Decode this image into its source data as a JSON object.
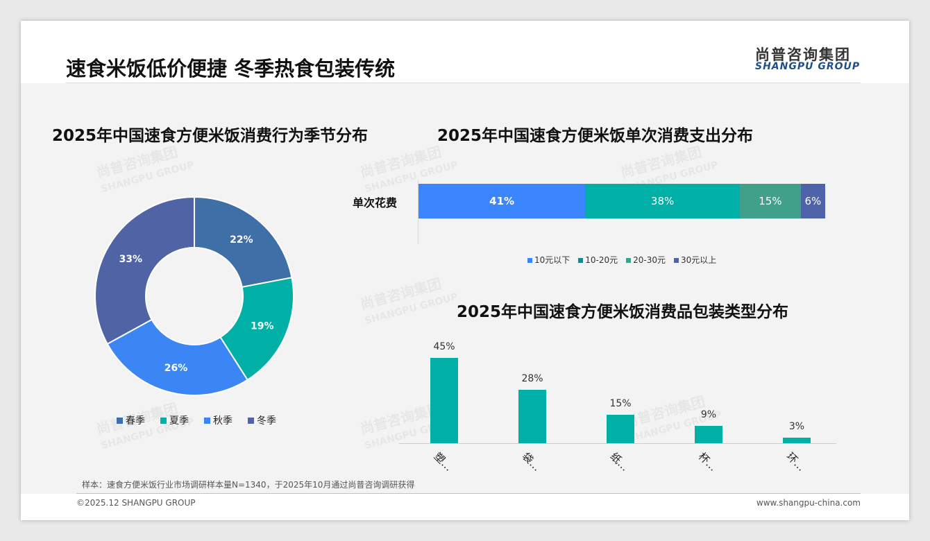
{
  "header": {
    "title": "速食米饭低价便捷 冬季热食包装传统",
    "logo_cn": "尚普咨询集团",
    "logo_en": "SHANGPU GROUP"
  },
  "watermark": {
    "cn": "尚普咨询集团",
    "en": "SHANGPU GROUP"
  },
  "chart_data": [
    {
      "type": "pie",
      "title": "2025年中国速食方便米饭消费行为季节分布",
      "categories": [
        "春季",
        "夏季",
        "秋季",
        "冬季"
      ],
      "values": [
        22,
        19,
        26,
        33
      ],
      "labels": [
        "22%",
        "19%",
        "26%",
        "33%"
      ],
      "colors": [
        "#3e6fa6",
        "#00b0a6",
        "#3b86f4",
        "#4f63a5"
      ],
      "donut": true,
      "legend": "bottom"
    },
    {
      "type": "bar",
      "orientation": "horizontal",
      "stacked": true,
      "title": "2025年中国速食方便米饭单次消费支出分布",
      "categories": [
        "单次花费"
      ],
      "series": [
        {
          "name": "10元以下",
          "values": [
            41
          ],
          "label": "41%",
          "color": "#3b86ff"
        },
        {
          "name": "10-20元",
          "values": [
            38
          ],
          "label": "38%",
          "color": "#00b0a6"
        },
        {
          "name": "20-30元",
          "values": [
            15
          ],
          "label": "15%",
          "color": "#40a08a"
        },
        {
          "name": "30元以上",
          "values": [
            6
          ],
          "label": "6%",
          "color": "#4f63a8"
        }
      ],
      "legend": "bottom",
      "legend_colors": [
        "#3b86ff",
        "#0e8f8f",
        "#40a08a",
        "#4f63a8"
      ]
    },
    {
      "type": "bar",
      "title": "2025年中国速食方便米饭消费品包装类型分布",
      "categories": [
        "塑…",
        "袋…",
        "纸…",
        "杯…",
        "环…"
      ],
      "values": [
        45,
        28,
        15,
        9,
        3
      ],
      "labels": [
        "45%",
        "28%",
        "15%",
        "9%",
        "3%"
      ],
      "color": "#00b0a6",
      "ylim": [
        0,
        45
      ]
    }
  ],
  "footer": {
    "note": "样本：速食方便米饭行业市场调研样本量N=1340，于2025年10月通过尚普咨询调研获得",
    "copyright": "©2025.12 SHANGPU GROUP",
    "website": "www.shangpu-china.com"
  }
}
